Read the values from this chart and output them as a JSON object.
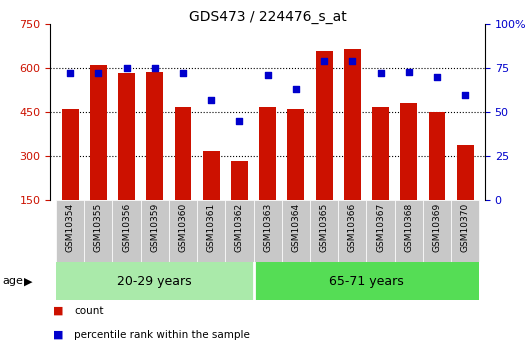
{
  "title": "GDS473 / 224476_s_at",
  "samples": [
    "GSM10354",
    "GSM10355",
    "GSM10356",
    "GSM10359",
    "GSM10360",
    "GSM10361",
    "GSM10362",
    "GSM10363",
    "GSM10364",
    "GSM10365",
    "GSM10366",
    "GSM10367",
    "GSM10368",
    "GSM10369",
    "GSM10370"
  ],
  "counts": [
    462,
    612,
    583,
    588,
    468,
    318,
    285,
    468,
    462,
    660,
    666,
    468,
    480,
    450,
    338
  ],
  "percentiles": [
    72,
    72,
    75,
    75,
    72,
    57,
    45,
    71,
    63,
    79,
    79,
    72,
    73,
    70,
    60
  ],
  "groups": [
    {
      "label": "20-29 years",
      "start": 0,
      "end": 7,
      "color": "#aaeaaa"
    },
    {
      "label": "65-71 years",
      "start": 7,
      "end": 15,
      "color": "#55dd55"
    }
  ],
  "ylim_left": [
    150,
    750
  ],
  "ylim_right": [
    0,
    100
  ],
  "yticks_left": [
    150,
    300,
    450,
    600,
    750
  ],
  "yticks_right": [
    0,
    25,
    50,
    75,
    100
  ],
  "ytick_labels_right": [
    "0",
    "25",
    "50",
    "75",
    "100%"
  ],
  "bar_color": "#cc1100",
  "marker_color": "#0000cc",
  "axis_label_color_left": "#cc1100",
  "axis_label_color_right": "#0000cc",
  "grid_yticks": [
    300,
    450,
    600
  ],
  "background_color": "#ffffff",
  "bar_width": 0.6,
  "cell_color": "#c8c8c8",
  "age_label": "age",
  "legend": [
    {
      "label": "count",
      "color": "#cc1100",
      "marker": "s"
    },
    {
      "label": "percentile rank within the sample",
      "color": "#0000cc",
      "marker": "s"
    }
  ]
}
